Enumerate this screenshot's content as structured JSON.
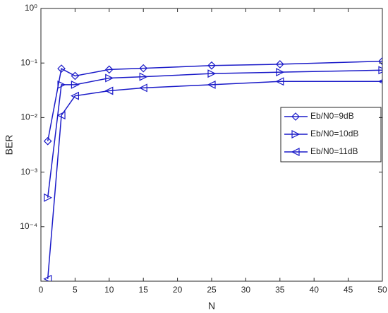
{
  "chart_data": {
    "type": "line",
    "x_label": "N",
    "y_label": "BER",
    "log_y": true,
    "grid": false,
    "legend": "right",
    "xlim": [
      0,
      50
    ],
    "xticks": [
      0,
      5,
      10,
      15,
      20,
      25,
      30,
      35,
      40,
      45,
      50
    ],
    "ylim": [
      1e-05,
      1
    ],
    "yticks": [
      {
        "value": 0.0001,
        "label": "10⁻⁴"
      },
      {
        "value": 0.001,
        "label": "10⁻³"
      },
      {
        "value": 0.01,
        "label": "10⁻²"
      },
      {
        "value": 0.1,
        "label": "10⁻¹"
      },
      {
        "value": 1,
        "label": "10⁰"
      }
    ],
    "x": [
      1,
      3,
      5,
      10,
      15,
      25,
      35,
      50
    ],
    "series": [
      {
        "name": "Eb/N0=9dB",
        "color": "#1a1ac8",
        "marker": "diamond",
        "values": [
          0.0037,
          0.079,
          0.058,
          0.076,
          0.08,
          0.09,
          0.095,
          0.108
        ]
      },
      {
        "name": "Eb/N0=10dB",
        "color": "#1a1ac8",
        "marker": "triangle-right",
        "values": [
          0.00034,
          0.04,
          0.04,
          0.053,
          0.056,
          0.064,
          0.068,
          0.074
        ]
      },
      {
        "name": "Eb/N0=11dB",
        "color": "#1a1ac8",
        "marker": "triangle-left",
        "values": [
          1.1e-05,
          0.011,
          0.025,
          0.031,
          0.035,
          0.04,
          0.046,
          0.046
        ]
      }
    ]
  }
}
